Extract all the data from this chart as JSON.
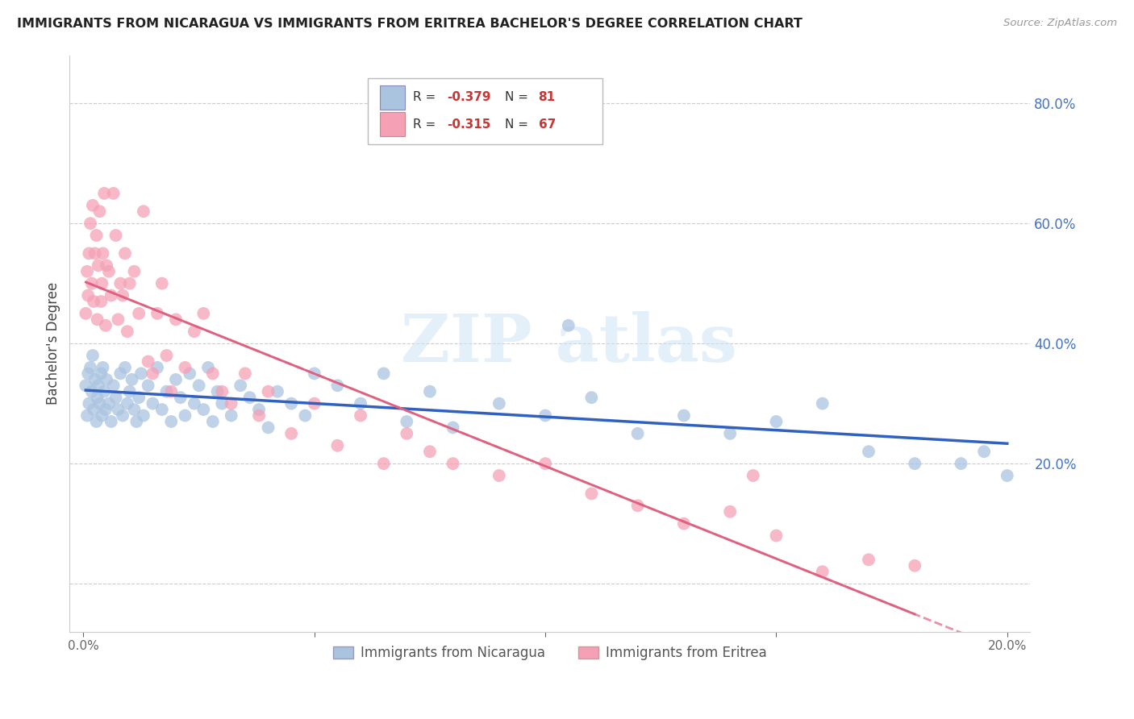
{
  "title": "IMMIGRANTS FROM NICARAGUA VS IMMIGRANTS FROM ERITREA BACHELOR'S DEGREE CORRELATION CHART",
  "source": "Source: ZipAtlas.com",
  "ylabel": "Bachelor's Degree",
  "xlim": [
    -0.3,
    20.5
  ],
  "ylim": [
    -8.0,
    88.0
  ],
  "y_gridlines": [
    0.0,
    20.0,
    40.0,
    60.0,
    80.0
  ],
  "x_tick_positions": [
    0.0,
    5.0,
    10.0,
    15.0,
    20.0
  ],
  "x_tick_labels": [
    "0.0%",
    "",
    "",
    "",
    "20.0%"
  ],
  "y_tick_positions": [
    0.0,
    20.0,
    40.0,
    60.0,
    80.0
  ],
  "y_tick_labels": [
    "",
    "20.0%",
    "40.0%",
    "60.0%",
    "80.0%"
  ],
  "nicaragua_R": -0.379,
  "nicaragua_N": 81,
  "eritrea_R": -0.315,
  "eritrea_N": 67,
  "nicaragua_color": "#aac4e0",
  "eritrea_color": "#f5a0b5",
  "nicaragua_line_color": "#3060c0",
  "eritrea_line_color": "#e06080",
  "legend_r1_val": "-0.379",
  "legend_r2_val": "-0.315",
  "legend_n1_val": "81",
  "legend_n2_val": "67",
  "nicaragua_x": [
    0.05,
    0.08,
    0.1,
    0.12,
    0.15,
    0.18,
    0.2,
    0.22,
    0.25,
    0.28,
    0.3,
    0.32,
    0.35,
    0.38,
    0.4,
    0.42,
    0.45,
    0.48,
    0.5,
    0.55,
    0.6,
    0.65,
    0.7,
    0.75,
    0.8,
    0.85,
    0.9,
    0.95,
    1.0,
    1.05,
    1.1,
    1.15,
    1.2,
    1.25,
    1.3,
    1.4,
    1.5,
    1.6,
    1.7,
    1.8,
    1.9,
    2.0,
    2.1,
    2.2,
    2.3,
    2.4,
    2.5,
    2.6,
    2.7,
    2.8,
    2.9,
    3.0,
    3.2,
    3.4,
    3.6,
    3.8,
    4.0,
    4.2,
    4.5,
    4.8,
    5.0,
    5.5,
    6.0,
    6.5,
    7.0,
    7.5,
    8.0,
    9.0,
    10.0,
    10.5,
    11.0,
    12.0,
    13.0,
    14.0,
    15.0,
    16.0,
    17.0,
    18.0,
    19.0,
    19.5,
    20.0
  ],
  "nicaragua_y": [
    33,
    28,
    35,
    30,
    36,
    32,
    38,
    29,
    34,
    27,
    31,
    33,
    30,
    35,
    28,
    36,
    32,
    29,
    34,
    30,
    27,
    33,
    31,
    29,
    35,
    28,
    36,
    30,
    32,
    34,
    29,
    27,
    31,
    35,
    28,
    33,
    30,
    36,
    29,
    32,
    27,
    34,
    31,
    28,
    35,
    30,
    33,
    29,
    36,
    27,
    32,
    30,
    28,
    33,
    31,
    29,
    26,
    32,
    30,
    28,
    35,
    33,
    30,
    35,
    27,
    32,
    26,
    30,
    28,
    43,
    31,
    25,
    28,
    25,
    27,
    30,
    22,
    20,
    20,
    22,
    18
  ],
  "eritrea_x": [
    0.05,
    0.08,
    0.1,
    0.12,
    0.15,
    0.18,
    0.2,
    0.22,
    0.25,
    0.28,
    0.3,
    0.32,
    0.35,
    0.38,
    0.4,
    0.42,
    0.45,
    0.48,
    0.5,
    0.55,
    0.6,
    0.65,
    0.7,
    0.75,
    0.8,
    0.85,
    0.9,
    0.95,
    1.0,
    1.1,
    1.2,
    1.3,
    1.4,
    1.5,
    1.6,
    1.7,
    1.8,
    1.9,
    2.0,
    2.2,
    2.4,
    2.6,
    2.8,
    3.0,
    3.2,
    3.5,
    3.8,
    4.0,
    4.5,
    5.0,
    5.5,
    6.0,
    6.5,
    7.0,
    7.5,
    8.0,
    9.0,
    10.0,
    11.0,
    12.0,
    13.0,
    14.0,
    14.5,
    15.0,
    16.0,
    17.0,
    18.0
  ],
  "eritrea_y": [
    45,
    52,
    48,
    55,
    60,
    50,
    63,
    47,
    55,
    58,
    44,
    53,
    62,
    47,
    50,
    55,
    65,
    43,
    53,
    52,
    48,
    65,
    58,
    44,
    50,
    48,
    55,
    42,
    50,
    52,
    45,
    62,
    37,
    35,
    45,
    50,
    38,
    32,
    44,
    36,
    42,
    45,
    35,
    32,
    30,
    35,
    28,
    32,
    25,
    30,
    23,
    28,
    20,
    25,
    22,
    20,
    18,
    20,
    15,
    13,
    10,
    12,
    18,
    8,
    2,
    4,
    3
  ],
  "eritrea_line_x_start": 0.05,
  "eritrea_line_x_end": 20.0,
  "nicaragua_line_x_start": 0.05,
  "nicaragua_line_x_end": 20.0
}
